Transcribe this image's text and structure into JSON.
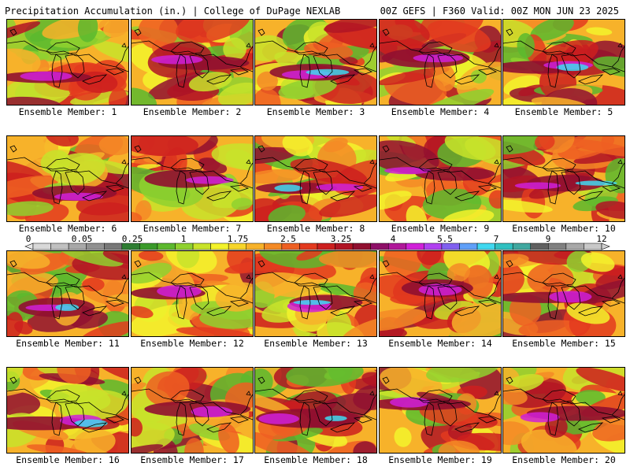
{
  "header": {
    "title": "Precipitation Accumulation (in.) | College of DuPage NEXLAB",
    "run_info": "00Z GEFS | F360 Valid: 00Z MON JUN 23 2025"
  },
  "legend": {
    "tick_labels": [
      "0",
      "0.05",
      "0.25",
      "1",
      "1.75",
      "2.5",
      "3.25",
      "4",
      "5.5",
      "7",
      "9",
      "12"
    ],
    "colors": [
      "#d8d8d8",
      "#c0c0c0",
      "#a8a8a8",
      "#909090",
      "#787878",
      "#2e7d32",
      "#3a9a2a",
      "#5cb82e",
      "#8fd12f",
      "#c8e32a",
      "#f3f32b",
      "#f7d52a",
      "#f7b22a",
      "#f48a26",
      "#ee5f22",
      "#e33a1f",
      "#cc1f1f",
      "#b01424",
      "#901030",
      "#8e1068",
      "#b0189a",
      "#d020d8",
      "#b040f0",
      "#8060f0",
      "#60a0f8",
      "#40d8f0",
      "#30c0c0",
      "#40a8a0",
      "#606060",
      "#808080",
      "#a8a8a8",
      "#c8c8c8"
    ]
  },
  "members": [
    {
      "label": "Ensemble Member: 1"
    },
    {
      "label": "Ensemble Member: 2"
    },
    {
      "label": "Ensemble Member: 3"
    },
    {
      "label": "Ensemble Member: 4"
    },
    {
      "label": "Ensemble Member: 5"
    },
    {
      "label": "Ensemble Member: 6"
    },
    {
      "label": "Ensemble Member: 7"
    },
    {
      "label": "Ensemble Member: 8"
    },
    {
      "label": "Ensemble Member: 9"
    },
    {
      "label": "Ensemble Member: 10"
    },
    {
      "label": "Ensemble Member: 11"
    },
    {
      "label": "Ensemble Member: 12"
    },
    {
      "label": "Ensemble Member: 13"
    },
    {
      "label": "Ensemble Member: 14"
    },
    {
      "label": "Ensemble Member: 15"
    },
    {
      "label": "Ensemble Member: 16"
    },
    {
      "label": "Ensemble Member: 17"
    },
    {
      "label": "Ensemble Member: 18"
    },
    {
      "label": "Ensemble Member: 19"
    },
    {
      "label": "Ensemble Member: 20"
    }
  ]
}
